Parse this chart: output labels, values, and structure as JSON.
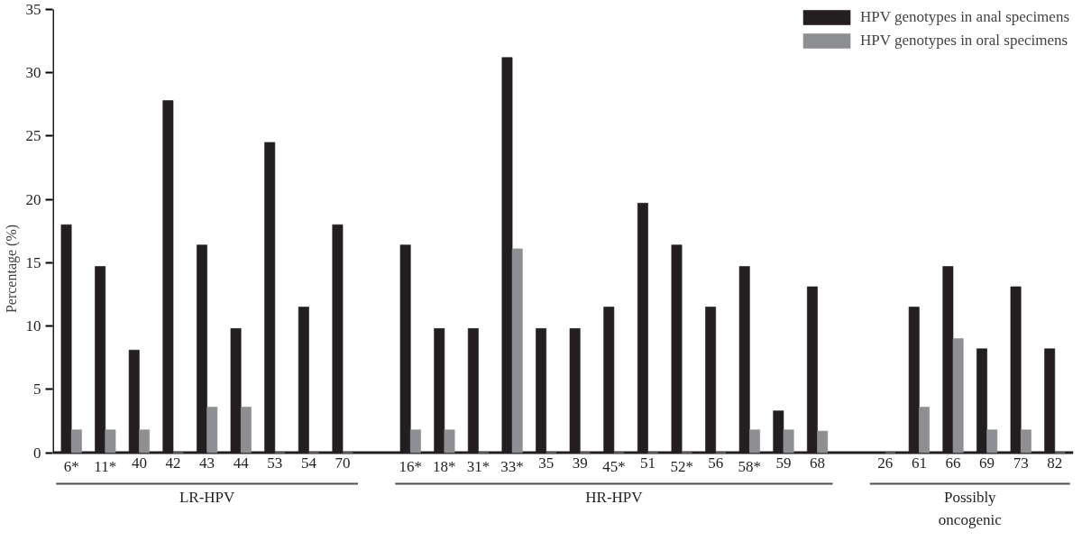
{
  "chart_data": {
    "type": "bar",
    "ylabel": "Percentage (%)",
    "categories": [
      "6*",
      "11*",
      "40",
      "42",
      "43",
      "44",
      "53",
      "54",
      "70",
      null,
      "16*",
      "18*",
      "31*",
      "33*",
      "35",
      "39",
      "45*",
      "51",
      "52*",
      "56",
      "58*",
      "59",
      "68",
      null,
      "26",
      "61",
      "66",
      "69",
      "73",
      "82"
    ],
    "series": [
      {
        "name": "HPV genotypes in anal specimens",
        "color": "#231f20",
        "values": [
          18.0,
          14.7,
          8.1,
          27.8,
          16.4,
          9.8,
          24.5,
          11.5,
          18.0,
          null,
          16.4,
          9.8,
          9.8,
          31.2,
          9.8,
          9.8,
          11.5,
          19.7,
          16.4,
          11.5,
          14.7,
          3.3,
          13.1,
          null,
          0,
          11.5,
          14.7,
          8.2,
          13.1,
          8.2
        ]
      },
      {
        "name": "HPV genotypes in oral specimens",
        "color": "#8e8f92",
        "values": [
          1.8,
          1.8,
          1.8,
          0,
          3.6,
          3.6,
          0,
          0,
          0,
          null,
          1.8,
          1.8,
          0,
          16.1,
          0,
          0,
          0,
          0,
          0,
          0,
          1.8,
          1.8,
          1.7,
          null,
          0,
          3.6,
          9.0,
          1.8,
          1.8,
          0
        ]
      }
    ],
    "ylim": [
      0,
      35
    ],
    "yticks": [
      0,
      5,
      10,
      15,
      20,
      25,
      30,
      35
    ],
    "legend": "top right",
    "annotations": [
      "LR-HPV",
      "HR-HPV",
      "Possibly oncogenic"
    ]
  }
}
